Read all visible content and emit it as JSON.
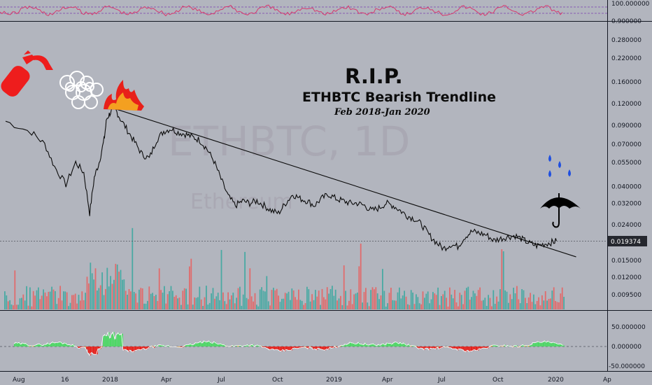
{
  "chart_data": {
    "type": "line",
    "symbol": "ETHBTC",
    "interval": "1D",
    "watermark": {
      "line1": "ETHBTC, 1D",
      "line2": "Ethereum"
    },
    "annotations": {
      "title": "R.I.P.",
      "subtitle": "ETHBTC Bearish Trendline",
      "date_range": "Feb 2018-Jan 2020"
    },
    "x_ticks": [
      "Aug",
      "16",
      "2018",
      "Apr",
      "Jul",
      "Oct",
      "2019",
      "Apr",
      "Jul",
      "Oct",
      "2020",
      "Ap"
    ],
    "y_scale": "log",
    "price_ticks": [
      "0.280000",
      "0.220000",
      "0.160000",
      "0.120000",
      "0.090000",
      "0.070000",
      "0.055000",
      "0.040000",
      "0.032000",
      "0.024000",
      "0.015000",
      "0.012000",
      "0.009500"
    ],
    "last_price": "0.019374",
    "price_series": [
      {
        "x": 0,
        "y": 0.095
      },
      {
        "x": 0.08,
        "y": 0.082
      },
      {
        "x": 0.12,
        "y": 0.07
      },
      {
        "x": 0.15,
        "y": 0.052
      },
      {
        "x": 0.185,
        "y": 0.041
      },
      {
        "x": 0.215,
        "y": 0.055
      },
      {
        "x": 0.24,
        "y": 0.048
      },
      {
        "x": 0.258,
        "y": 0.028
      },
      {
        "x": 0.272,
        "y": 0.045
      },
      {
        "x": 0.287,
        "y": 0.055
      },
      {
        "x": 0.302,
        "y": 0.074
      },
      {
        "x": 0.31,
        "y": 0.098
      },
      {
        "x": 0.322,
        "y": 0.107
      },
      {
        "x": 0.336,
        "y": 0.112
      },
      {
        "x": 0.352,
        "y": 0.098
      },
      {
        "x": 0.374,
        "y": 0.084
      },
      {
        "x": 0.396,
        "y": 0.072
      },
      {
        "x": 0.419,
        "y": 0.061
      },
      {
        "x": 0.441,
        "y": 0.058
      },
      {
        "x": 0.463,
        "y": 0.074
      },
      {
        "x": 0.485,
        "y": 0.083
      },
      {
        "x": 0.507,
        "y": 0.086
      },
      {
        "x": 0.529,
        "y": 0.082
      },
      {
        "x": 0.551,
        "y": 0.08
      },
      {
        "x": 0.573,
        "y": 0.077
      },
      {
        "x": 0.595,
        "y": 0.074
      },
      {
        "x": 0.617,
        "y": 0.066
      },
      {
        "x": 0.639,
        "y": 0.056
      },
      {
        "x": 0.661,
        "y": 0.044
      },
      {
        "x": 0.683,
        "y": 0.035
      },
      {
        "x": 0.705,
        "y": 0.031
      },
      {
        "x": 0.727,
        "y": 0.033
      },
      {
        "x": 0.749,
        "y": 0.032
      },
      {
        "x": 0.771,
        "y": 0.033
      },
      {
        "x": 0.793,
        "y": 0.031
      },
      {
        "x": 0.815,
        "y": 0.029
      },
      {
        "x": 0.837,
        "y": 0.028
      },
      {
        "x": 0.859,
        "y": 0.032
      },
      {
        "x": 0.881,
        "y": 0.036
      },
      {
        "x": 0.903,
        "y": 0.034
      },
      {
        "x": 0.925,
        "y": 0.033
      },
      {
        "x": 0.947,
        "y": 0.031
      },
      {
        "x": 0.969,
        "y": 0.034
      },
      {
        "x": 0.991,
        "y": 0.036
      },
      {
        "x": 1.013,
        "y": 0.034
      },
      {
        "x": 1.035,
        "y": 0.033
      },
      {
        "x": 1.057,
        "y": 0.032
      },
      {
        "x": 1.079,
        "y": 0.032
      },
      {
        "x": 1.101,
        "y": 0.031
      },
      {
        "x": 1.123,
        "y": 0.029
      },
      {
        "x": 1.145,
        "y": 0.03
      },
      {
        "x": 1.167,
        "y": 0.032
      },
      {
        "x": 1.189,
        "y": 0.031
      },
      {
        "x": 1.211,
        "y": 0.029
      },
      {
        "x": 1.233,
        "y": 0.027
      },
      {
        "x": 1.255,
        "y": 0.026
      },
      {
        "x": 1.277,
        "y": 0.024
      },
      {
        "x": 1.299,
        "y": 0.021
      },
      {
        "x": 1.321,
        "y": 0.019
      },
      {
        "x": 1.343,
        "y": 0.0175
      },
      {
        "x": 1.365,
        "y": 0.0185
      },
      {
        "x": 1.387,
        "y": 0.018
      },
      {
        "x": 1.409,
        "y": 0.0205
      },
      {
        "x": 1.431,
        "y": 0.022
      },
      {
        "x": 1.453,
        "y": 0.0215
      },
      {
        "x": 1.475,
        "y": 0.021
      },
      {
        "x": 1.497,
        "y": 0.0195
      },
      {
        "x": 1.519,
        "y": 0.02
      },
      {
        "x": 1.541,
        "y": 0.0205
      },
      {
        "x": 1.563,
        "y": 0.0208
      },
      {
        "x": 1.585,
        "y": 0.0198
      },
      {
        "x": 1.607,
        "y": 0.0188
      },
      {
        "x": 1.629,
        "y": 0.0182
      },
      {
        "x": 1.651,
        "y": 0.0186
      },
      {
        "x": 1.673,
        "y": 0.019
      },
      {
        "x": 1.69,
        "y": 0.019374
      }
    ],
    "trendline": {
      "from": {
        "x": 0.336,
        "y": 0.112
      },
      "to": {
        "x": 1.75,
        "y": 0.0157
      }
    },
    "volume": {
      "note": "volume histogram in red/green bars"
    },
    "oscillator": {
      "ticks": [
        "50.000000",
        "0.000000",
        "-50.000000"
      ],
      "ylim": [
        -50,
        50
      ]
    },
    "rsi_ticks": [
      "100.000000",
      "0.900000"
    ]
  },
  "colors": {
    "background": "#b2b5be",
    "price_line": "#0b0b0b",
    "trendline": "#0b0b0b",
    "volume_up": "#26a69a",
    "volume_down": "#ef5350",
    "osc_up": "#4cd964",
    "osc_down": "#e8201a",
    "osc_mid": "#f0a020",
    "rsi_line": "#d8386e",
    "rsi_band": "#7b3fb0",
    "last_price_bg": "#25272e",
    "drops": "#1f4fe0",
    "extinguisher": "#ee1d1d"
  },
  "icons": [
    "fire-extinguisher-icon",
    "smoke-cloud-icon",
    "fire-icon",
    "umbrella-icon",
    "raindrop-icon"
  ]
}
